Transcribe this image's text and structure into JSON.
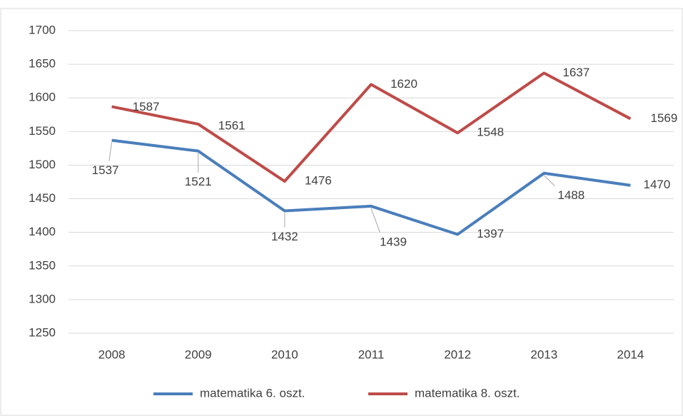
{
  "chart_data": {
    "type": "line",
    "categories": [
      "2008",
      "2009",
      "2010",
      "2011",
      "2012",
      "2013",
      "2014"
    ],
    "series": [
      {
        "name": "matematika 6. oszt.",
        "color": "#4a7ebb",
        "values": [
          1537,
          1521,
          1432,
          1439,
          1397,
          1488,
          1470
        ]
      },
      {
        "name": "matematika 8. oszt.",
        "color": "#be4b48",
        "values": [
          1587,
          1561,
          1476,
          1620,
          1548,
          1637,
          1569
        ]
      }
    ],
    "ylim": [
      1250,
      1700
    ],
    "yticks": [
      1250,
      1300,
      1350,
      1400,
      1450,
      1500,
      1550,
      1600,
      1650,
      1700
    ],
    "grid": true,
    "legend": "bottom"
  }
}
